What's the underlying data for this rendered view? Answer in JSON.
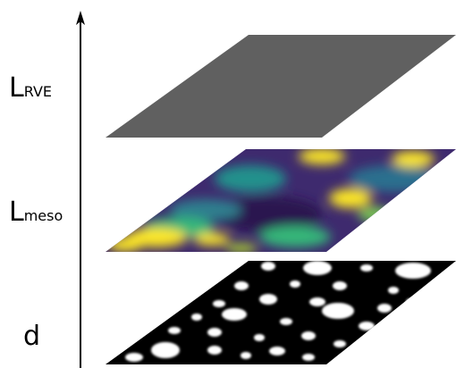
{
  "labels": [
    {
      "main": "L",
      "sub": "RVE"
    },
    {
      "main": "L",
      "sub": "meso"
    },
    {
      "main": "d"
    }
  ]
}
